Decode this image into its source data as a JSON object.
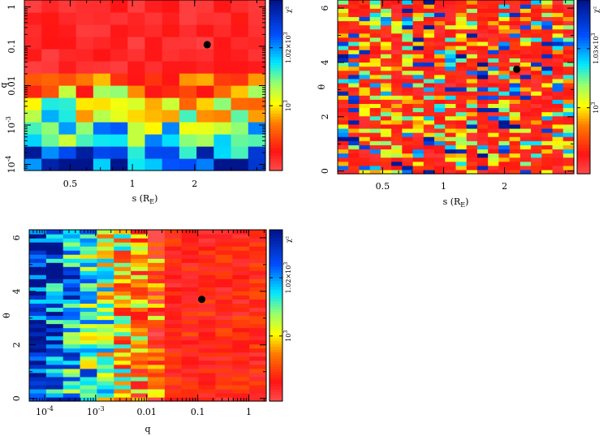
{
  "colors": {
    "red": "#ff2020",
    "orange": "#ff7a00",
    "yellow": "#ffff00",
    "green": "#80ff80",
    "cyan": "#00e5ff",
    "blue": "#0044ff",
    "navy": "#00208a",
    "black": "#000000"
  },
  "chart_data": [
    {
      "type": "heatmap",
      "name": "s-q",
      "xlabel": "s (R_E)",
      "ylabel": "q",
      "xscale": "log",
      "yscale": "log",
      "xlim": [
        0.3,
        4.4
      ],
      "ylim": [
        7e-05,
        1.5
      ],
      "xticks": [
        {
          "value": 0.5,
          "label": "0.5"
        },
        {
          "value": 1,
          "label": "1"
        },
        {
          "value": 2,
          "label": "2"
        }
      ],
      "yticks": [
        {
          "value": 1,
          "label": "1"
        },
        {
          "value": 0.1,
          "label": "0.1"
        },
        {
          "value": 0.01,
          "label": "0.01"
        },
        {
          "value": 0.001,
          "label": "10",
          "exp": "-3"
        },
        {
          "value": 0.0001,
          "label": "10",
          "exp": "-4"
        }
      ],
      "marker": {
        "x": 2.3,
        "y": 0.11
      },
      "colorbar": {
        "label": "χ²",
        "ticks": [
          {
            "label": "1.02×10",
            "exp": "3",
            "pos": 0.28
          },
          {
            "label": "10",
            "exp": "3",
            "pos": 0.62
          }
        ]
      }
    },
    {
      "type": "heatmap",
      "name": "s-theta",
      "xlabel": "s (R_E)",
      "ylabel": "θ",
      "xscale": "log",
      "yscale": "linear",
      "xlim": [
        0.3,
        4.4
      ],
      "ylim": [
        -0.1,
        6.3
      ],
      "xticks": [
        {
          "value": 0.5,
          "label": "0.5"
        },
        {
          "value": 1,
          "label": "1"
        },
        {
          "value": 2,
          "label": "2"
        }
      ],
      "yticks": [
        {
          "value": 0,
          "label": "0"
        },
        {
          "value": 2,
          "label": "2"
        },
        {
          "value": 4,
          "label": "4"
        },
        {
          "value": 6,
          "label": "6"
        }
      ],
      "marker": {
        "x": 2.3,
        "y": 3.75
      },
      "colorbar": {
        "label": "χ²",
        "ticks": [
          {
            "label": "1.03×10",
            "exp": "3",
            "pos": 0.28
          },
          {
            "label": "10",
            "exp": "3",
            "pos": 0.62
          }
        ]
      }
    },
    {
      "type": "heatmap",
      "name": "q-theta",
      "xlabel": "q",
      "ylabel": "θ",
      "xscale": "log",
      "yscale": "linear",
      "xlim": [
        5e-05,
        2.2
      ],
      "ylim": [
        -0.1,
        6.3
      ],
      "xticks": [
        {
          "value": 0.0001,
          "label": "10",
          "exp": "-4"
        },
        {
          "value": 0.001,
          "label": "10",
          "exp": "-3"
        },
        {
          "value": 0.01,
          "label": "0.01"
        },
        {
          "value": 0.1,
          "label": "0.1"
        },
        {
          "value": 1,
          "label": "1"
        }
      ],
      "yticks": [
        {
          "value": 0,
          "label": "0"
        },
        {
          "value": 2,
          "label": "2"
        },
        {
          "value": 4,
          "label": "4"
        },
        {
          "value": 6,
          "label": "6"
        }
      ],
      "marker": {
        "x": 0.12,
        "y": 3.7
      },
      "colorbar": {
        "label": "χ²",
        "ticks": [
          {
            "label": "1.02×10",
            "exp": "3",
            "pos": 0.28
          },
          {
            "label": "10",
            "exp": "3",
            "pos": 0.62
          }
        ]
      }
    }
  ]
}
